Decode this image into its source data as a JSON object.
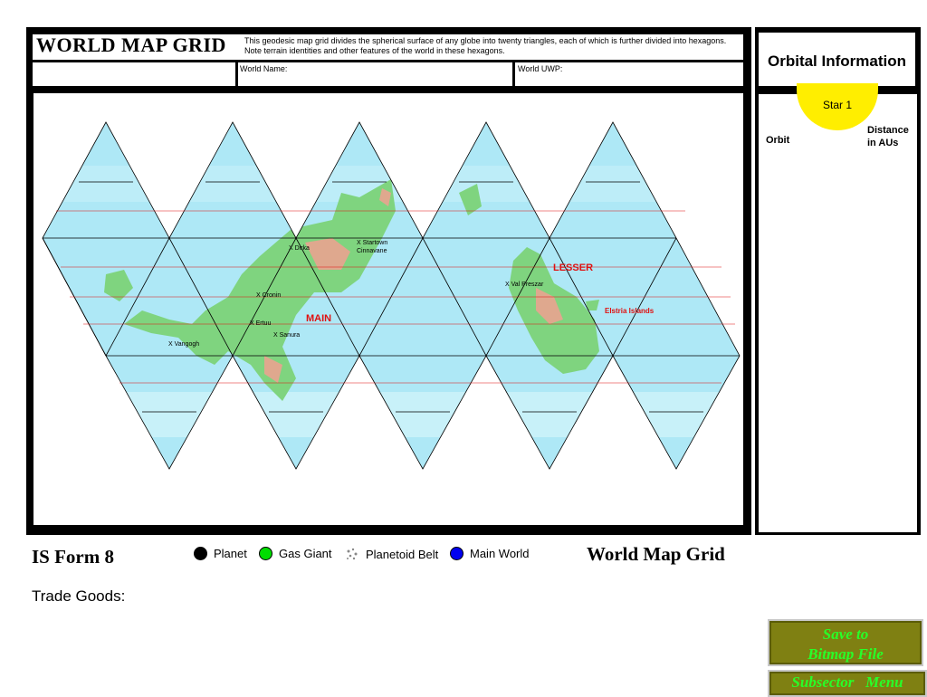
{
  "header": {
    "title": "WORLD MAP GRID",
    "description": "This geodesic map grid divides the spherical surface of any globe into twenty triangles, each of which is further divided into hexagons.  Note terrain identities and other features of the world in these hexagons.",
    "world_name_label": "World Name:",
    "world_uwp_label": "World UWP:"
  },
  "orbital": {
    "title": "Orbital Information",
    "star_label": "Star 1",
    "orbit_label": "Orbit",
    "distance_label_1": "Distance",
    "distance_label_2": "in AUs"
  },
  "map": {
    "places": [
      {
        "text": "X Dirka"
      },
      {
        "text": "X Startown"
      },
      {
        "text": "Cinnavane"
      },
      {
        "text": "X Cronin"
      },
      {
        "text": "X Ertuu"
      },
      {
        "text": "X Sanura"
      },
      {
        "text": "X Vangogh"
      },
      {
        "text": "X Val Preszar"
      }
    ],
    "regions": {
      "main": "MAIN",
      "lesser": "LESSER",
      "elstria": "Elstria Islands"
    }
  },
  "footer": {
    "form_name": "IS Form 8",
    "grid_name": "World Map Grid",
    "trade_goods_label": "Trade Goods:",
    "legend": [
      {
        "label": "Planet",
        "color": "#000000",
        "icon": "black-dot-icon"
      },
      {
        "label": "Gas Giant",
        "color": "#00dd00",
        "icon": "green-dot-icon"
      },
      {
        "label": "Planetoid Belt",
        "color": "#888888",
        "icon": "asteroid-cluster-icon"
      },
      {
        "label": "Main World",
        "color": "#0000ee",
        "icon": "blue-dot-icon"
      }
    ]
  },
  "buttons": {
    "save_line1": "Save to",
    "save_line2": "Bitmap File",
    "subsector": "Subsector   Menu"
  },
  "colors": {
    "ocean": "#aee8f6",
    "land": "#7fd47f",
    "highland": "#f0a090",
    "star": "#ffee00",
    "button_bg": "#7f8012",
    "button_text": "#28ff28",
    "region_label": "#e01010"
  }
}
